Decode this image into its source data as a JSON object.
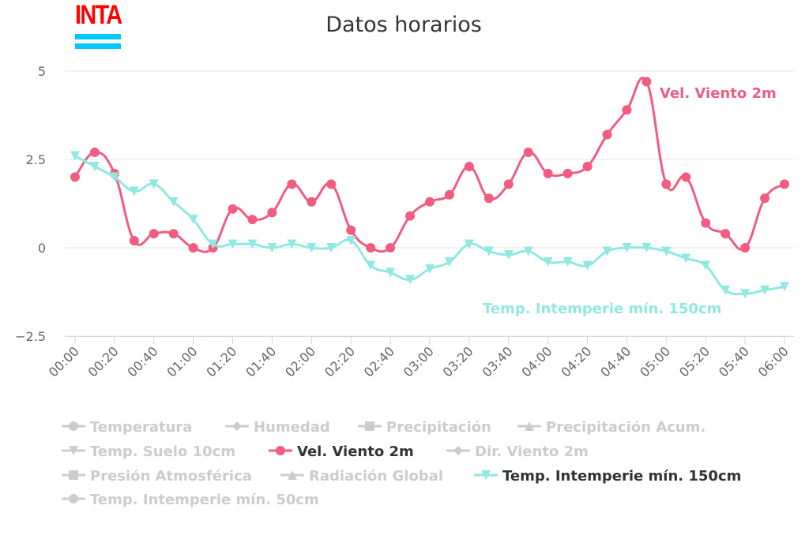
{
  "logo": {
    "text": "INTA"
  },
  "chart_data": {
    "type": "line",
    "title": "Datos horarios",
    "ylim": [
      -2.5,
      5
    ],
    "yticks": [
      5,
      2.5,
      0,
      -2.5
    ],
    "ytick_labels": [
      "5",
      "2.5",
      "0",
      "−2.5"
    ],
    "x_tick_labels": [
      "00:00",
      "00:20",
      "00:40",
      "01:00",
      "01:20",
      "01:40",
      "02:00",
      "02:20",
      "02:40",
      "03:00",
      "03:20",
      "03:40",
      "04:00",
      "04:20",
      "04:40",
      "05:00",
      "05:20",
      "05:40",
      "06:00"
    ],
    "x_interval_minutes": 10,
    "grid": true,
    "series": [
      {
        "name": "Vel. Viento 2m",
        "color": "#f15c80",
        "marker": "circle",
        "label": "Vel. Viento 2m",
        "values": [
          2.0,
          2.7,
          2.1,
          0.2,
          0.4,
          0.4,
          0,
          0,
          1.1,
          0.8,
          1.0,
          1.8,
          1.3,
          1.8,
          0.5,
          0,
          0,
          0.9,
          1.3,
          1.5,
          2.3,
          1.4,
          1.8,
          2.7,
          2.1,
          2.1,
          2.3,
          3.2,
          3.9,
          4.7,
          1.8,
          2.0,
          0.7,
          0.4,
          0,
          1.4,
          1.8
        ]
      },
      {
        "name": "Temp. Intemperie mín. 150cm",
        "color": "#91e8e1",
        "marker": "triangle-down",
        "label": "Temp. Intemperie mín. 150cm",
        "values": [
          2.6,
          2.3,
          2.0,
          1.6,
          1.8,
          1.3,
          0.8,
          0.1,
          0.1,
          0.1,
          0.0,
          0.1,
          0,
          0,
          0.2,
          -0.5,
          -0.7,
          -0.9,
          -0.6,
          -0.4,
          0.1,
          -0.1,
          -0.2,
          -0.1,
          -0.4,
          -0.4,
          -0.5,
          -0.1,
          0,
          0,
          -0.1,
          -0.3,
          -0.5,
          -1.2,
          -1.3,
          -1.2,
          -1.1
        ]
      }
    ],
    "legend": {
      "placement": "bottom",
      "items": [
        {
          "name": "Temperatura",
          "marker": "circle",
          "visible": false
        },
        {
          "name": "Humedad",
          "marker": "diamond",
          "visible": false
        },
        {
          "name": "Precipitación",
          "marker": "square",
          "visible": false
        },
        {
          "name": "Precipitación Acum.",
          "marker": "triangle",
          "visible": false
        },
        {
          "name": "Temp. Suelo 10cm",
          "marker": "triangle-down",
          "visible": false
        },
        {
          "name": "Vel. Viento 2m",
          "marker": "circle",
          "visible": true,
          "color": "#f15c80"
        },
        {
          "name": "Dir. Viento 2m",
          "marker": "diamond",
          "visible": false
        },
        {
          "name": "Presión Atmosférica",
          "marker": "square",
          "visible": false
        },
        {
          "name": "Radiación Global",
          "marker": "triangle",
          "visible": false
        },
        {
          "name": "Temp. Intemperie mín. 150cm",
          "marker": "triangle-down",
          "visible": true,
          "color": "#91e8e1"
        },
        {
          "name": "Temp. Intemperie mín. 50cm",
          "marker": "circle",
          "visible": false
        }
      ]
    }
  }
}
